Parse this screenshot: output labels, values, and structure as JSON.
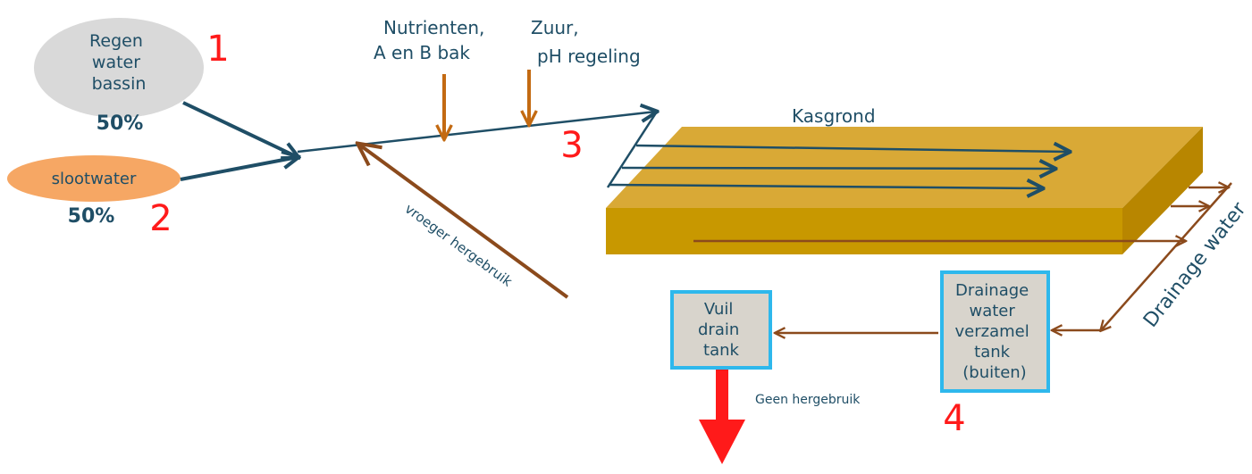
{
  "sources": {
    "rain": {
      "lines": [
        "Regen",
        "water",
        "bassin"
      ],
      "percent": "50%",
      "number": "1"
    },
    "ditch": {
      "label": "slootwater",
      "percent": "50%",
      "number": "2"
    }
  },
  "dosing": {
    "nutrients": {
      "lines": [
        "Nutrienten,",
        "A en B bak"
      ]
    },
    "acid": {
      "lines": [
        "Zuur,",
        "pH regeling"
      ]
    },
    "number": "3"
  },
  "reuse_label": "vroeger hergebruik",
  "field": {
    "label": "Kasgrond"
  },
  "drainage_label": "Drainage water",
  "collect_tank": {
    "lines": [
      "Drainage",
      "water",
      "verzamel",
      "tank",
      "(buiten)"
    ],
    "number": "4"
  },
  "dirty_tank": {
    "lines": [
      "Vuil",
      "drain",
      "tank"
    ]
  },
  "no_reuse_label": "Geen hergebruik",
  "colors": {
    "water": "#1f4e66",
    "dosing": "#c36a12",
    "drain": "#8b4a1c",
    "number": "#ff1a1a",
    "tank_border": "#2eb8ec",
    "tank_fill": "#d8d4cc",
    "soil_top": "#d9a936",
    "soil_front": "#c89800",
    "soil_side": "#b88600",
    "rain_fill": "#d9d9d9",
    "ditch_fill": "#f6a764"
  }
}
